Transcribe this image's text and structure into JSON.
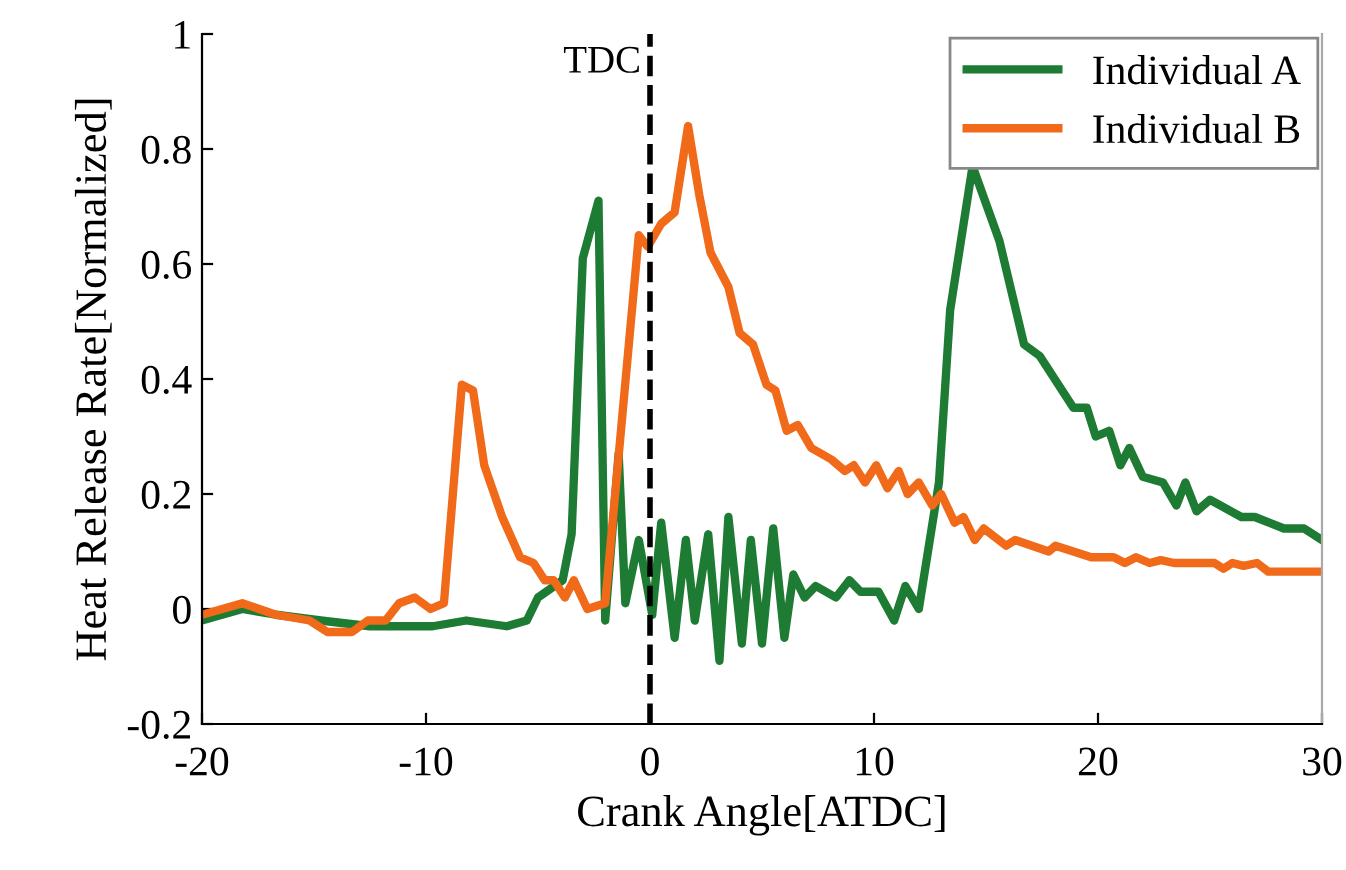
{
  "chart_data": {
    "type": "line",
    "xlabel": "Crank Angle[ATDC]",
    "ylabel": "Heat Release Rate[Normalized]",
    "xlim": [
      -20,
      30
    ],
    "ylim": [
      -0.2,
      1
    ],
    "xticks": [
      -20,
      -10,
      0,
      10,
      20,
      30
    ],
    "yticks": [
      -0.2,
      0,
      0.2,
      0.4,
      0.6,
      0.8,
      1
    ],
    "grid": false,
    "legend": "top right",
    "marker": "none",
    "line_style": "solid",
    "ref_lines": [
      {
        "axis": "x",
        "value": 0,
        "label": "TDC",
        "color": "#000000",
        "line_style": "dashed"
      }
    ],
    "series": [
      {
        "name": "Individual A",
        "color": "#1e7b34",
        "x": [
          -20,
          -18.2,
          -16.7,
          -14.7,
          -12.5,
          -9.7,
          -8.2,
          -6.4,
          -5.5,
          -5.0,
          -3.9,
          -3.5,
          -3.0,
          -2.3,
          -2.0,
          -1.4,
          -1.1,
          -0.5,
          0.1,
          0.5,
          1.1,
          1.6,
          2.0,
          2.6,
          3.1,
          3.5,
          4.1,
          4.5,
          5.0,
          5.5,
          6.0,
          6.4,
          6.9,
          7.4,
          8.3,
          8.9,
          9.4,
          10.2,
          10.9,
          11.4,
          12.0,
          12.9,
          13.4,
          14.4,
          15.6,
          16.7,
          17.4,
          18.9,
          19.5,
          19.9,
          20.5,
          21.0,
          21.4,
          22.0,
          22.9,
          23.5,
          23.9,
          24.4,
          25.0,
          26.4,
          27.0,
          28.3,
          29.2,
          30
        ],
        "values": [
          -0.02,
          0.0,
          -0.01,
          -0.02,
          -0.03,
          -0.03,
          -0.02,
          -0.03,
          -0.02,
          0.02,
          0.05,
          0.13,
          0.61,
          0.71,
          -0.02,
          0.27,
          0.01,
          0.12,
          -0.01,
          0.15,
          -0.05,
          0.12,
          -0.02,
          0.13,
          -0.09,
          0.16,
          -0.06,
          0.12,
          -0.06,
          0.14,
          -0.05,
          0.06,
          0.02,
          0.04,
          0.02,
          0.05,
          0.03,
          0.03,
          -0.02,
          0.04,
          0.0,
          0.22,
          0.52,
          0.77,
          0.64,
          0.46,
          0.44,
          0.35,
          0.35,
          0.3,
          0.31,
          0.25,
          0.28,
          0.23,
          0.22,
          0.18,
          0.22,
          0.17,
          0.19,
          0.16,
          0.16,
          0.14,
          0.14,
          0.12
        ]
      },
      {
        "name": "Individual B",
        "color": "#f06a1a",
        "x": [
          -20,
          -18.2,
          -16.7,
          -15.2,
          -14.4,
          -13.3,
          -12.6,
          -11.8,
          -11.2,
          -10.5,
          -9.8,
          -9.2,
          -8.4,
          -7.9,
          -7.4,
          -6.6,
          -5.8,
          -5.2,
          -4.7,
          -4.3,
          -3.8,
          -3.4,
          -2.8,
          -2.0,
          -0.5,
          -0.1,
          0.5,
          1.1,
          1.7,
          2.2,
          2.7,
          3.5,
          4.0,
          4.6,
          5.2,
          5.6,
          6.1,
          6.6,
          7.2,
          8.1,
          8.7,
          9.1,
          9.6,
          10.1,
          10.6,
          11.1,
          11.5,
          12.0,
          12.6,
          13.0,
          13.6,
          14.0,
          14.5,
          14.9,
          15.9,
          16.3,
          17.8,
          18.1,
          19.7,
          20.7,
          21.2,
          21.7,
          22.3,
          22.8,
          23.4,
          25.2,
          25.6,
          26.0,
          26.5,
          27.1,
          27.6,
          29.3,
          30
        ],
        "values": [
          -0.01,
          0.01,
          -0.01,
          -0.02,
          -0.04,
          -0.04,
          -0.02,
          -0.02,
          0.01,
          0.02,
          0.0,
          0.01,
          0.39,
          0.38,
          0.25,
          0.16,
          0.09,
          0.08,
          0.05,
          0.05,
          0.02,
          0.05,
          0.0,
          0.01,
          0.65,
          0.63,
          0.67,
          0.69,
          0.84,
          0.72,
          0.62,
          0.56,
          0.48,
          0.46,
          0.39,
          0.38,
          0.31,
          0.32,
          0.28,
          0.26,
          0.24,
          0.25,
          0.22,
          0.25,
          0.21,
          0.24,
          0.2,
          0.22,
          0.18,
          0.2,
          0.15,
          0.16,
          0.12,
          0.14,
          0.11,
          0.12,
          0.1,
          0.11,
          0.09,
          0.09,
          0.08,
          0.09,
          0.08,
          0.085,
          0.08,
          0.08,
          0.07,
          0.08,
          0.075,
          0.08,
          0.065,
          0.065,
          0.065
        ]
      }
    ]
  }
}
